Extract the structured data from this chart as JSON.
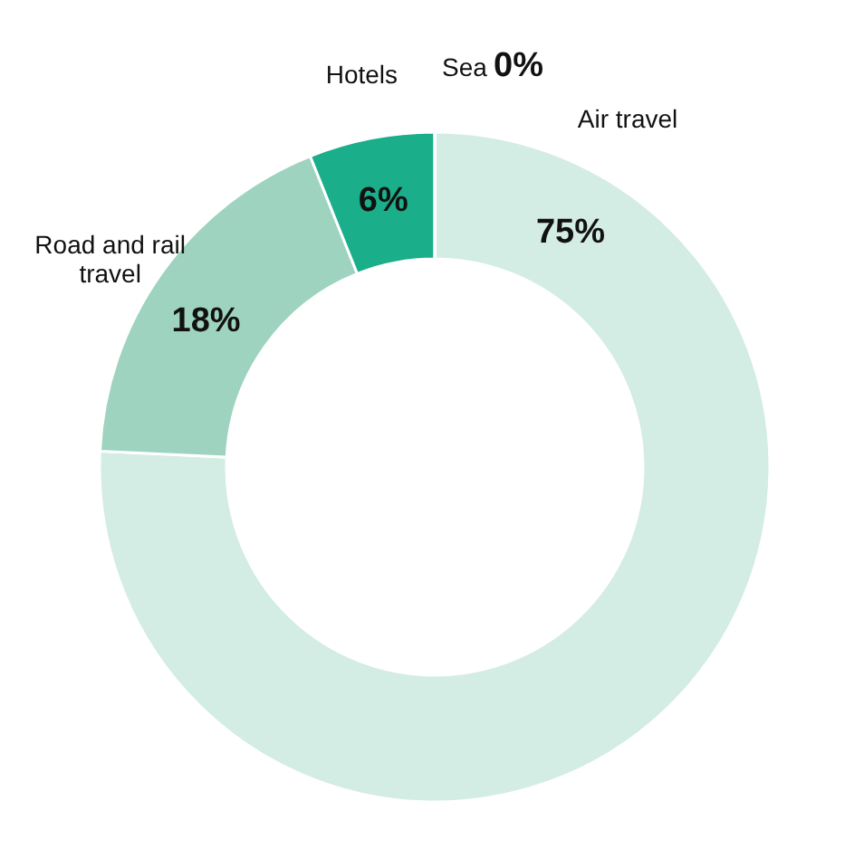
{
  "chart_data": {
    "type": "donut",
    "categories": [
      "Air travel",
      "Road and rail travel",
      "Hotels",
      "Sea"
    ],
    "values": [
      75,
      18,
      6,
      0
    ],
    "colors": [
      "#d3ece4",
      "#9dd3bf",
      "#1aae8a",
      "#0e8f6f"
    ],
    "value_labels": [
      "75%",
      "18%",
      "6%",
      "0%"
    ]
  }
}
